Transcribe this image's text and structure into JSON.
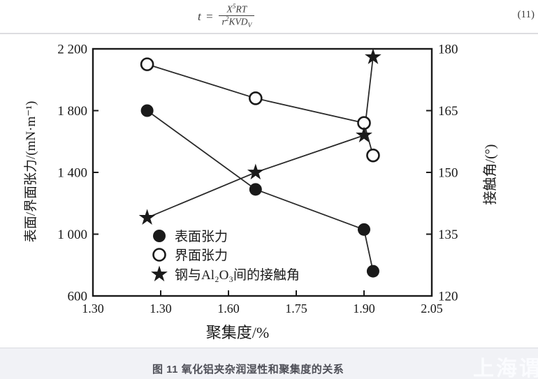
{
  "equation": {
    "lhs": "t",
    "equals": "=",
    "num_base": "X",
    "num_exp": "5",
    "num_tail": "RT",
    "den_base": "r",
    "den_exp": "2",
    "den_tail": "KVD",
    "den_sub": "V",
    "number": "(11)"
  },
  "chart_data": {
    "type": "line",
    "title": "",
    "xlabel": "聚集度/%",
    "ylabel_left": "表面/界面张力/(mN·m⁻¹)",
    "ylabel_right": "接触角/(°)",
    "xlim": [
      1.3,
      2.05
    ],
    "ylim_left": [
      600,
      2200
    ],
    "ylim_right": [
      120,
      180
    ],
    "x_tick_labels": [
      "1.30",
      "1.30",
      "1.60",
      "1.75",
      "1.90",
      "2.05"
    ],
    "y_tick_labels_left": [
      "600",
      "1 000",
      "1 400",
      "1 800",
      "2 200"
    ],
    "y_tick_labels_right": [
      "120",
      "135",
      "150",
      "165",
      "180"
    ],
    "grid": false,
    "legend_position": "inside-lower-left",
    "series": [
      {
        "name": "表面张力",
        "marker": "filled-circle",
        "axis": "left",
        "x": [
          1.42,
          1.66,
          1.9,
          1.92
        ],
        "values": [
          1800,
          1290,
          1030,
          760
        ]
      },
      {
        "name": "界面张力",
        "marker": "open-circle",
        "axis": "left",
        "x": [
          1.42,
          1.66,
          1.9,
          1.92
        ],
        "values": [
          2100,
          1880,
          1720,
          1510
        ]
      },
      {
        "name": "钢与Al₂O₃间的接触角",
        "marker": "star",
        "axis": "right",
        "x": [
          1.42,
          1.66,
          1.9,
          1.92
        ],
        "values": [
          139,
          150,
          159,
          178
        ]
      }
    ]
  },
  "caption": "图 11 氧化铝夹杂润湿性和聚集度的关系",
  "watermark": "上海谓",
  "colors": {
    "ink": "#1a1a1a",
    "caption_text": "#4e4f57",
    "strip_background": "#f1f2f6",
    "divider": "#dddde0"
  }
}
